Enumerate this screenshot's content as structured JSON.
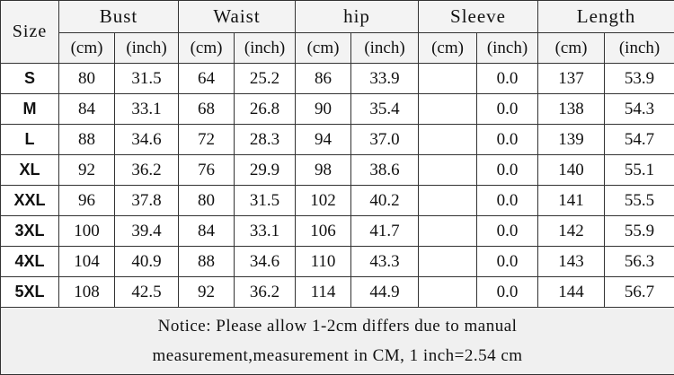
{
  "header": {
    "size": "Size",
    "groups": [
      "Bust",
      "Waist",
      "hip",
      "Sleeve",
      "Length"
    ],
    "units": [
      "(cm)",
      "(inch)",
      "(cm)",
      "(inch)",
      "(cm)",
      "(inch)",
      "(cm)",
      "(inch)",
      "(cm)",
      "(inch)"
    ]
  },
  "rows": [
    {
      "size": "S",
      "cells": [
        "80",
        "31.5",
        "64",
        "25.2",
        "86",
        "33.9",
        null,
        "0.0",
        "137",
        "53.9"
      ]
    },
    {
      "size": "M",
      "cells": [
        "84",
        "33.1",
        "68",
        "26.8",
        "90",
        "35.4",
        null,
        "0.0",
        "138",
        "54.3"
      ]
    },
    {
      "size": "L",
      "cells": [
        "88",
        "34.6",
        "72",
        "28.3",
        "94",
        "37.0",
        null,
        "0.0",
        "139",
        "54.7"
      ]
    },
    {
      "size": "XL",
      "cells": [
        "92",
        "36.2",
        "76",
        "29.9",
        "98",
        "38.6",
        null,
        "0.0",
        "140",
        "55.1"
      ]
    },
    {
      "size": "XXL",
      "cells": [
        "96",
        "37.8",
        "80",
        "31.5",
        "102",
        "40.2",
        null,
        "0.0",
        "141",
        "55.5"
      ]
    },
    {
      "size": "3XL",
      "cells": [
        "100",
        "39.4",
        "84",
        "33.1",
        "106",
        "41.7",
        null,
        "0.0",
        "142",
        "55.9"
      ]
    },
    {
      "size": "4XL",
      "cells": [
        "104",
        "40.9",
        "88",
        "34.6",
        "110",
        "43.3",
        null,
        "0.0",
        "143",
        "56.3"
      ]
    },
    {
      "size": "5XL",
      "cells": [
        "108",
        "42.5",
        "92",
        "36.2",
        "114",
        "44.9",
        null,
        "0.0",
        "144",
        "56.7"
      ]
    }
  ],
  "notice": [
    "Notice: Please allow 1-2cm differs due to manual",
    "measurement,measurement in CM, 1 inch=2.54 cm"
  ]
}
